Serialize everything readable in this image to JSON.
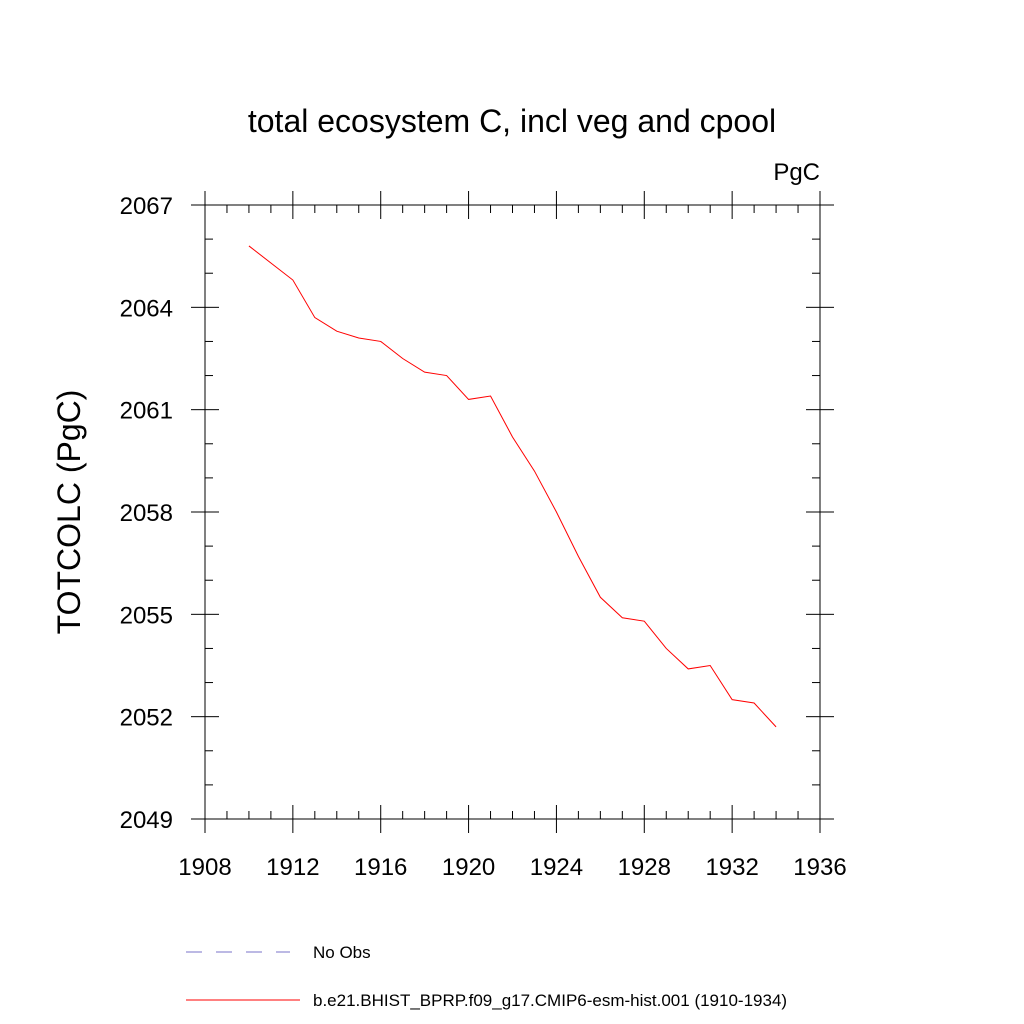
{
  "chart_data": {
    "type": "line",
    "title": "total ecosystem C, incl veg and cpool",
    "units_label": "PgC",
    "ylabel": "TOTCOLC  (PgC)",
    "xlabel": "",
    "xlim": [
      1908,
      1936
    ],
    "ylim": [
      2049,
      2067
    ],
    "x_ticks": [
      1908,
      1912,
      1916,
      1920,
      1924,
      1928,
      1932,
      1936
    ],
    "y_ticks": [
      2049,
      2052,
      2055,
      2058,
      2061,
      2064,
      2067
    ],
    "x_tick_labels": [
      "1908",
      "1912",
      "1916",
      "1920",
      "1924",
      "1928",
      "1932",
      "1936"
    ],
    "y_tick_labels": [
      "2049",
      "2052",
      "2055",
      "2058",
      "2061",
      "2064",
      "2067"
    ],
    "x_minor_step": 1,
    "y_minor_step": 1,
    "grid": false,
    "legend_position": "bottom",
    "series": [
      {
        "name": "b.e21.BHIST_BPRP.f09_g17.CMIP6-esm-hist.001 (1910-1934)",
        "color": "#ff0000",
        "x": [
          1910,
          1911,
          1912,
          1913,
          1914,
          1915,
          1916,
          1917,
          1918,
          1919,
          1920,
          1921,
          1922,
          1923,
          1924,
          1925,
          1926,
          1927,
          1928,
          1929,
          1930,
          1931,
          1932,
          1933,
          1934
        ],
        "y": [
          2065.8,
          2065.3,
          2064.8,
          2063.7,
          2063.3,
          2063.1,
          2063.0,
          2062.5,
          2062.1,
          2062.0,
          2061.3,
          2061.4,
          2060.2,
          2059.2,
          2058.0,
          2056.7,
          2055.5,
          2054.9,
          2054.8,
          2054.0,
          2053.4,
          2053.5,
          2052.5,
          2052.4,
          2051.7
        ]
      }
    ],
    "legend": [
      {
        "label": "No Obs",
        "style": "dashed",
        "color": "#7a73c8"
      },
      {
        "label": "b.e21.BHIST_BPRP.f09_g17.CMIP6-esm-hist.001 (1910-1934)",
        "style": "solid",
        "color": "#ff0000"
      }
    ]
  }
}
